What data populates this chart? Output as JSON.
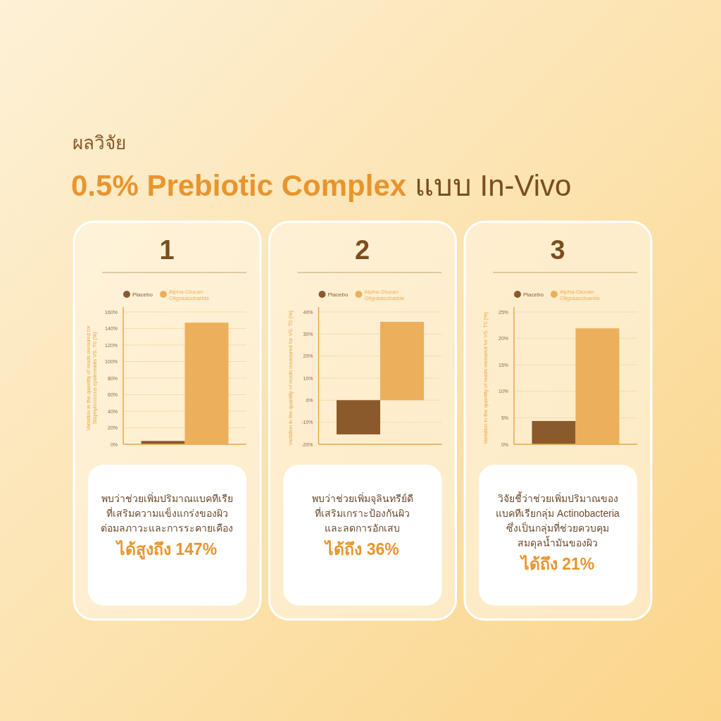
{
  "chart_data": [
    {
      "type": "bar",
      "title": "1",
      "ylabel": "Variation in the quantity of reads mesured for Staphylococcus epidermidis VS. T0 (%)",
      "categories": [
        null
      ],
      "legend": "top",
      "grid": "y",
      "series": [
        {
          "name": "Placebo",
          "color": "#8b5a2b",
          "values": [
            4
          ]
        },
        {
          "name": "Alpha-Glucan Oligosaccharide",
          "color": "#ecaf5b",
          "values": [
            147
          ]
        }
      ],
      "ylim": [
        0,
        160
      ],
      "yticks": [
        {
          "value": 0,
          "label": "0%"
        },
        {
          "value": 20,
          "label": "20%"
        },
        {
          "value": 40,
          "label": "40%"
        },
        {
          "value": 60,
          "label": "60%"
        },
        {
          "value": 80,
          "label": "80%"
        },
        {
          "value": 100,
          "label": "100%"
        },
        {
          "value": 120,
          "label": "120%"
        },
        {
          "value": 140,
          "label": "140%"
        },
        {
          "value": 160,
          "label": "160%"
        }
      ],
      "annotations": [
        "ผลวิจัย",
        "**0.5% Prebiotic Complex** แบบ In-Vivo",
        "พบว่าช่วยเพิ่มปริมาณแบคทีเรีย",
        "ที่เสริมความแข็งแกร่งของผิว",
        "ต่อมลภาวะและการระคายเคือง",
        "ได้สูงถึง 147%"
      ]
    },
    {
      "type": "bar",
      "title": "2",
      "ylabel": "Variation in the quantity of reads measured for VS. T0 (%)",
      "categories": [
        null
      ],
      "legend": "top",
      "grid": "y",
      "series": [
        {
          "name": "Placebo",
          "color": "#8b5a2b",
          "values": [
            -15.5
          ]
        },
        {
          "name": "Alpha-Glucan Oligosaccharide",
          "color": "#ecaf5b",
          "values": [
            35.5
          ]
        }
      ],
      "ylim": [
        -20,
        40
      ],
      "yticks": [
        {
          "value": -20,
          "label": "-20%"
        },
        {
          "value": -10,
          "label": "-10%"
        },
        {
          "value": 0,
          "label": "0%"
        },
        {
          "value": 10,
          "label": "10%"
        },
        {
          "value": 20,
          "label": "20%"
        },
        {
          "value": 30,
          "label": "30%"
        },
        {
          "value": 40,
          "label": "40%"
        }
      ],
      "annotations": [
        "พบว่าช่วยเพิ่มจุลินทรีย์ดี",
        "ที่เสริมเกราะป้องกันผิว",
        "และลดการอักเสบ",
        "ได้ถึง 36%"
      ]
    },
    {
      "type": "bar",
      "title": "3",
      "ylabel": "Variation in the quantity of reads mesured for VS. T0 (%)",
      "categories": [
        null
      ],
      "legend": "top",
      "grid": "y",
      "series": [
        {
          "name": "Placebo",
          "color": "#8b5a2b",
          "values": [
            4.4
          ]
        },
        {
          "name": "Alpha-Glucan Oligosaccharide",
          "color": "#ecaf5b",
          "values": [
            21.9
          ]
        }
      ],
      "ylim": [
        0,
        25
      ],
      "yticks": [
        {
          "value": 0,
          "label": "0%"
        },
        {
          "value": 5,
          "label": "5%"
        },
        {
          "value": 10,
          "label": "10%"
        },
        {
          "value": 15,
          "label": "15%"
        },
        {
          "value": 20,
          "label": "20%"
        },
        {
          "value": 25,
          "label": "25%"
        }
      ],
      "annotations": [
        "วิจัยชี้ว่าช่วยเพิ่มปริมาณของ",
        "แบคทีเรียกลุ่ม Actinobacteria",
        "ซึ่งเป็นกลุ่มที่ช่วยควบคุม",
        "สมดุลน้ำมันของผิว",
        "ได้ถึง 21%"
      ]
    }
  ]
}
